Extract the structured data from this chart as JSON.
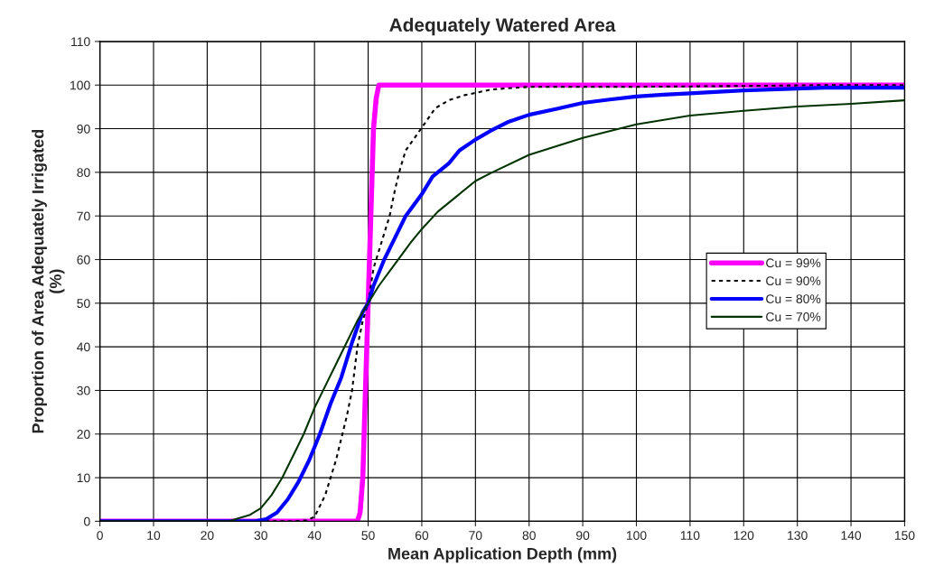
{
  "chart_data": {
    "type": "line",
    "title": "Adequately Watered Area",
    "xlabel": "Mean Application Depth (mm)",
    "ylabel": "Proportion of Area Adequately Irrigated\n(%)",
    "xlim": [
      0,
      150
    ],
    "xticks": [
      0,
      10,
      20,
      30,
      40,
      50,
      60,
      70,
      80,
      90,
      100,
      110,
      120,
      130,
      140,
      150
    ],
    "ylim": [
      0,
      110
    ],
    "yticks": [
      0,
      10,
      20,
      30,
      40,
      50,
      60,
      70,
      80,
      90,
      100,
      110
    ],
    "grid": true,
    "legend": "right",
    "marker": "none",
    "series": [
      {
        "name": "Cu = 99%",
        "color": "#ff00ff",
        "line_style": "solid",
        "x": [
          0,
          48,
          48.5,
          49,
          49.5,
          50,
          50.5,
          51,
          51.5,
          52,
          150
        ],
        "values": [
          0,
          0,
          2,
          10,
          30,
          50,
          70,
          90,
          97,
          100,
          100
        ]
      },
      {
        "name": "Cu = 90%",
        "color": "#000000",
        "line_style": "dotted",
        "x": [
          0,
          36,
          38.5,
          40,
          42,
          44,
          45,
          46,
          47,
          48,
          49,
          50,
          51,
          52,
          53,
          54,
          55,
          56,
          57,
          59,
          61,
          62.5,
          65,
          68,
          70,
          73,
          80,
          100,
          120,
          135,
          150
        ],
        "values": [
          0,
          0,
          0.2,
          1,
          6,
          14,
          19,
          24,
          30,
          40,
          46,
          50,
          58,
          62,
          66,
          70,
          76,
          81,
          85,
          88.5,
          92,
          94.7,
          96.5,
          97.7,
          98.2,
          99,
          99.6,
          99.6,
          99.8,
          100,
          100
        ]
      },
      {
        "name": "Cu = 80%",
        "color": "#0000ff",
        "line_style": "solid",
        "x": [
          0,
          29,
          31,
          33,
          35,
          37,
          39,
          41,
          43,
          45,
          47,
          49,
          50,
          51,
          53,
          55,
          57,
          60,
          62,
          65,
          67,
          70,
          72.8,
          76,
          80,
          85,
          90,
          95,
          100,
          105,
          110,
          120,
          135,
          150
        ],
        "values": [
          0,
          0,
          0.5,
          2,
          5,
          9,
          14,
          20,
          27,
          33,
          41,
          48,
          50,
          54,
          60,
          65,
          70,
          75,
          79,
          82,
          85,
          87.5,
          89.5,
          91.5,
          93.2,
          94.5,
          95.9,
          96.7,
          97.4,
          97.8,
          98.1,
          98.8,
          99.4,
          99.4
        ]
      },
      {
        "name": "Cu = 70%",
        "color": "#003300",
        "line_style": "solid",
        "x": [
          0,
          24,
          28,
          30,
          32,
          34,
          36,
          38,
          40,
          42,
          44,
          46,
          48,
          50,
          52,
          55,
          58,
          60,
          63,
          66,
          70,
          72.8,
          80,
          90,
          100,
          110,
          120,
          130,
          140,
          150
        ],
        "values": [
          0,
          0,
          1.5,
          3,
          6,
          10,
          15,
          20,
          26,
          31,
          36,
          41,
          46,
          50,
          54,
          59,
          64,
          67,
          71,
          74,
          78,
          79.8,
          84,
          87.9,
          91,
          93,
          94.1,
          95.1,
          95.7,
          96.5
        ]
      }
    ]
  }
}
